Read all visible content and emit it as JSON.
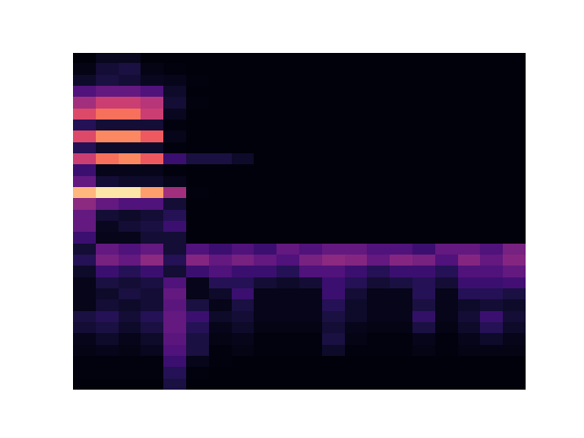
{
  "chart_data": {
    "type": "heatmap",
    "tick_labels": false,
    "color": "magma",
    "vlim": [
      0,
      1
    ],
    "cells": [
      [
        0.02,
        0.06,
        0.06,
        0.02,
        0.02,
        0.02,
        0.02,
        0.02,
        0.02,
        0.02,
        0.02,
        0.02,
        0.02,
        0.02,
        0.02,
        0.02,
        0.02,
        0.02,
        0.02,
        0.02
      ],
      [
        0.04,
        0.1,
        0.12,
        0.04,
        0.03,
        0.02,
        0.02,
        0.02,
        0.02,
        0.02,
        0.02,
        0.02,
        0.02,
        0.02,
        0.02,
        0.02,
        0.02,
        0.02,
        0.02,
        0.02
      ],
      [
        0.08,
        0.12,
        0.1,
        0.06,
        0.05,
        0.03,
        0.02,
        0.02,
        0.02,
        0.02,
        0.02,
        0.02,
        0.02,
        0.02,
        0.02,
        0.02,
        0.02,
        0.02,
        0.02,
        0.02
      ],
      [
        0.25,
        0.3,
        0.3,
        0.25,
        0.08,
        0.02,
        0.02,
        0.02,
        0.02,
        0.02,
        0.02,
        0.02,
        0.02,
        0.02,
        0.02,
        0.02,
        0.02,
        0.02,
        0.02,
        0.02
      ],
      [
        0.45,
        0.55,
        0.55,
        0.5,
        0.1,
        0.03,
        0.02,
        0.02,
        0.02,
        0.02,
        0.02,
        0.02,
        0.02,
        0.02,
        0.02,
        0.02,
        0.02,
        0.02,
        0.02,
        0.02
      ],
      [
        0.6,
        0.7,
        0.7,
        0.55,
        0.06,
        0.02,
        0.02,
        0.02,
        0.02,
        0.02,
        0.02,
        0.02,
        0.02,
        0.02,
        0.02,
        0.02,
        0.02,
        0.02,
        0.02,
        0.02
      ],
      [
        0.15,
        0.1,
        0.1,
        0.1,
        0.03,
        0.02,
        0.02,
        0.02,
        0.02,
        0.02,
        0.02,
        0.02,
        0.02,
        0.02,
        0.02,
        0.02,
        0.02,
        0.02,
        0.02,
        0.02
      ],
      [
        0.6,
        0.75,
        0.75,
        0.65,
        0.05,
        0.02,
        0.02,
        0.02,
        0.02,
        0.02,
        0.02,
        0.02,
        0.02,
        0.02,
        0.02,
        0.02,
        0.02,
        0.02,
        0.02,
        0.02
      ],
      [
        0.15,
        0.08,
        0.08,
        0.08,
        0.03,
        0.02,
        0.02,
        0.02,
        0.02,
        0.02,
        0.02,
        0.02,
        0.02,
        0.02,
        0.02,
        0.02,
        0.02,
        0.02,
        0.02,
        0.02
      ],
      [
        0.55,
        0.7,
        0.75,
        0.65,
        0.2,
        0.12,
        0.12,
        0.08,
        0.02,
        0.02,
        0.02,
        0.02,
        0.02,
        0.02,
        0.02,
        0.02,
        0.02,
        0.02,
        0.02,
        0.02
      ],
      [
        0.2,
        0.05,
        0.05,
        0.05,
        0.03,
        0.02,
        0.02,
        0.02,
        0.02,
        0.02,
        0.02,
        0.02,
        0.02,
        0.02,
        0.02,
        0.02,
        0.02,
        0.02,
        0.02,
        0.02
      ],
      [
        0.3,
        0.1,
        0.08,
        0.08,
        0.05,
        0.02,
        0.02,
        0.02,
        0.02,
        0.02,
        0.02,
        0.02,
        0.02,
        0.02,
        0.02,
        0.02,
        0.02,
        0.02,
        0.02,
        0.02
      ],
      [
        0.85,
        0.95,
        0.95,
        0.8,
        0.45,
        0.03,
        0.02,
        0.02,
        0.02,
        0.02,
        0.02,
        0.02,
        0.02,
        0.02,
        0.02,
        0.02,
        0.02,
        0.02,
        0.02,
        0.02
      ],
      [
        0.4,
        0.3,
        0.25,
        0.25,
        0.1,
        0.02,
        0.02,
        0.02,
        0.02,
        0.02,
        0.02,
        0.02,
        0.02,
        0.02,
        0.02,
        0.02,
        0.02,
        0.02,
        0.02,
        0.02
      ],
      [
        0.3,
        0.1,
        0.08,
        0.1,
        0.15,
        0.02,
        0.02,
        0.02,
        0.02,
        0.02,
        0.02,
        0.02,
        0.02,
        0.02,
        0.02,
        0.02,
        0.02,
        0.02,
        0.02,
        0.02
      ],
      [
        0.3,
        0.06,
        0.1,
        0.12,
        0.2,
        0.02,
        0.02,
        0.02,
        0.02,
        0.02,
        0.02,
        0.02,
        0.02,
        0.02,
        0.02,
        0.02,
        0.02,
        0.02,
        0.02,
        0.02
      ],
      [
        0.2,
        0.05,
        0.05,
        0.1,
        0.1,
        0.02,
        0.02,
        0.02,
        0.02,
        0.02,
        0.02,
        0.02,
        0.02,
        0.02,
        0.02,
        0.02,
        0.02,
        0.02,
        0.02,
        0.02
      ],
      [
        0.1,
        0.3,
        0.25,
        0.3,
        0.1,
        0.25,
        0.2,
        0.25,
        0.2,
        0.3,
        0.25,
        0.3,
        0.3,
        0.25,
        0.25,
        0.2,
        0.3,
        0.3,
        0.25,
        0.35
      ],
      [
        0.15,
        0.35,
        0.3,
        0.4,
        0.15,
        0.38,
        0.3,
        0.35,
        0.3,
        0.25,
        0.35,
        0.4,
        0.38,
        0.3,
        0.38,
        0.35,
        0.25,
        0.38,
        0.3,
        0.38
      ],
      [
        0.08,
        0.2,
        0.15,
        0.2,
        0.1,
        0.2,
        0.25,
        0.2,
        0.2,
        0.15,
        0.25,
        0.25,
        0.2,
        0.15,
        0.2,
        0.2,
        0.15,
        0.25,
        0.25,
        0.3
      ],
      [
        0.05,
        0.12,
        0.1,
        0.12,
        0.25,
        0.05,
        0.15,
        0.15,
        0.1,
        0.08,
        0.1,
        0.2,
        0.15,
        0.1,
        0.12,
        0.15,
        0.1,
        0.2,
        0.2,
        0.22
      ],
      [
        0.05,
        0.08,
        0.12,
        0.1,
        0.3,
        0.05,
        0.08,
        0.2,
        0.05,
        0.05,
        0.05,
        0.2,
        0.1,
        0.05,
        0.05,
        0.15,
        0.05,
        0.15,
        0.15,
        0.12
      ],
      [
        0.05,
        0.1,
        0.08,
        0.1,
        0.28,
        0.12,
        0.05,
        0.12,
        0.05,
        0.05,
        0.05,
        0.15,
        0.08,
        0.05,
        0.05,
        0.12,
        0.05,
        0.08,
        0.1,
        0.08
      ],
      [
        0.12,
        0.15,
        0.1,
        0.15,
        0.3,
        0.2,
        0.08,
        0.1,
        0.05,
        0.05,
        0.05,
        0.12,
        0.08,
        0.05,
        0.05,
        0.18,
        0.05,
        0.1,
        0.2,
        0.1
      ],
      [
        0.1,
        0.12,
        0.08,
        0.12,
        0.3,
        0.15,
        0.05,
        0.08,
        0.04,
        0.04,
        0.04,
        0.1,
        0.05,
        0.04,
        0.04,
        0.12,
        0.04,
        0.08,
        0.15,
        0.08
      ],
      [
        0.05,
        0.08,
        0.05,
        0.08,
        0.28,
        0.12,
        0.04,
        0.05,
        0.03,
        0.03,
        0.03,
        0.12,
        0.04,
        0.03,
        0.03,
        0.05,
        0.03,
        0.05,
        0.08,
        0.05
      ],
      [
        0.04,
        0.05,
        0.04,
        0.06,
        0.25,
        0.12,
        0.03,
        0.04,
        0.03,
        0.03,
        0.03,
        0.08,
        0.03,
        0.03,
        0.03,
        0.04,
        0.03,
        0.04,
        0.04,
        0.04
      ],
      [
        0.03,
        0.03,
        0.03,
        0.03,
        0.2,
        0.05,
        0.03,
        0.02,
        0.02,
        0.02,
        0.02,
        0.02,
        0.02,
        0.02,
        0.02,
        0.02,
        0.02,
        0.02,
        0.02,
        0.02
      ],
      [
        0.03,
        0.03,
        0.03,
        0.03,
        0.15,
        0.03,
        0.02,
        0.02,
        0.02,
        0.02,
        0.02,
        0.02,
        0.02,
        0.02,
        0.02,
        0.02,
        0.02,
        0.02,
        0.02,
        0.02
      ],
      [
        0.02,
        0.02,
        0.02,
        0.02,
        0.12,
        0.02,
        0.02,
        0.02,
        0.02,
        0.02,
        0.02,
        0.02,
        0.02,
        0.02,
        0.02,
        0.02,
        0.02,
        0.02,
        0.02,
        0.02
      ]
    ]
  }
}
